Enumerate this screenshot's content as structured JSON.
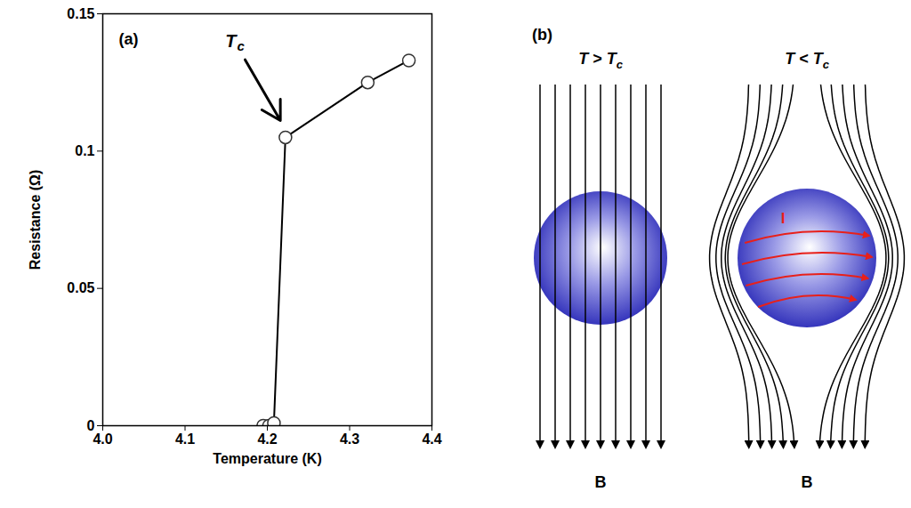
{
  "chart_data": {
    "type": "line",
    "panel_label": "(a)",
    "x_label": "Temperature (K)",
    "y_label": "Resistance (Ω)",
    "x": [
      4.195,
      4.202,
      4.208,
      4.222,
      4.322,
      4.372
    ],
    "values": [
      0,
      0,
      0.001,
      0.105,
      0.125,
      0.133
    ],
    "color": "#000000",
    "marker": "open_circle",
    "line_style": "solid",
    "xlim": [
      4.0,
      4.4
    ],
    "xticks": [
      {
        "value": 4,
        "label": "4.0"
      },
      4.1,
      4.2,
      4.3,
      4.4
    ],
    "ylim": [
      0,
      0.15
    ],
    "yticks": [
      0,
      0.05,
      0.1,
      0.15
    ],
    "annotations": [
      {
        "text": "T",
        "subscript": "c",
        "x": 4.16,
        "y": 0.14,
        "target": [
          4.218,
          0.11
        ]
      }
    ]
  },
  "diagram": {
    "panel_label": "(b)",
    "states": [
      {
        "label": {
          "text": "T > T",
          "subscript": "c"
        },
        "field_label": "B",
        "expelled": false
      },
      {
        "label": {
          "text": "T < T",
          "subscript": "c"
        },
        "field_label": "B",
        "expelled": true,
        "current_label": "I"
      }
    ]
  }
}
